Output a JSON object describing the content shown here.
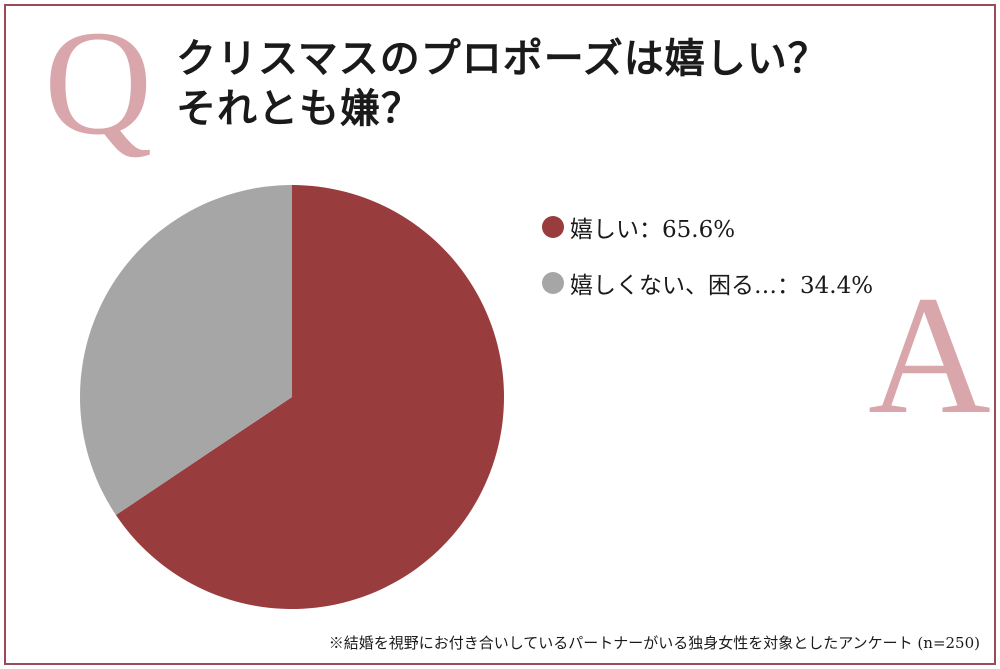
{
  "question_mark": "Q",
  "answer_mark": "A",
  "title_lines": [
    "クリスマスのプロポーズは嬉しい？",
    "それとも嫌？"
  ],
  "colors": {
    "frame": "#9a4b55",
    "accent_letters": "#d9a6ab",
    "series_happy": "#993c3e",
    "series_not": "#a6a6a6"
  },
  "chart_data": {
    "type": "pie",
    "title": "クリスマスのプロポーズは嬉しい？ それとも嫌？",
    "slices": [
      {
        "label": "嬉しい",
        "value": 65.6,
        "color": "#993c3e"
      },
      {
        "label": "嬉しくない、困る…",
        "value": 34.4,
        "color": "#a6a6a6"
      }
    ],
    "legend": [
      {
        "text": "嬉しい：65.6%",
        "color": "#993c3e"
      },
      {
        "text": "嬉しくない、困る…：34.4%",
        "color": "#a6a6a6"
      }
    ],
    "legend_position": "right",
    "start": "top",
    "direction": "clockwise"
  },
  "footnote": "※結婚を視野にお付き合いしているパートナーがいる独身女性を対象としたアンケート (n=250)"
}
